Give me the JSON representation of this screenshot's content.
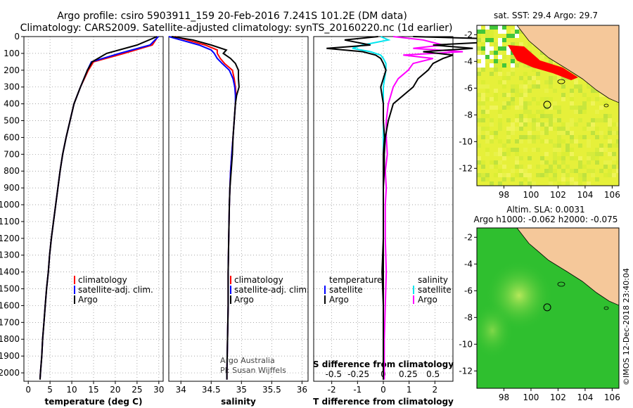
{
  "header": {
    "line1": "Argo profile: csiro 5903911_159 20-Feb-2016 7.241S 101.2E (DM data)",
    "line2": "Climatology: CARS2009. Satellite-adjusted climatology: synTS_20160220.nc (1d earlier)"
  },
  "colors": {
    "climatology": "#ff0000",
    "satellite": "#0000ff",
    "argo": "#000000",
    "sat_temp_diff": "#00e5ee",
    "sat_sal_diff": "#ff00ff",
    "land": "#f5c89a",
    "hot": "#ff0000",
    "sst_bg": "#e6f03a",
    "sla_bg": "#2fbf2f"
  },
  "credits": {
    "line1": "Argo Australia",
    "line2": "PI: Susan Wijffels",
    "stamp": "©IMOS 12-Dec-2018 23:40:04"
  },
  "chart_data": [
    {
      "id": "temperature",
      "type": "line",
      "xlabel": "temperature (deg C)",
      "xlim": [
        -1,
        31
      ],
      "xticks": [
        0,
        5,
        10,
        15,
        20,
        25,
        30
      ],
      "xtick_labels": [
        "0",
        "5",
        "10",
        "15",
        "20",
        "25",
        "30"
      ],
      "ylim": [
        2050,
        0
      ],
      "yticks": [
        0,
        100,
        200,
        300,
        400,
        500,
        600,
        700,
        800,
        900,
        1000,
        1100,
        1200,
        1300,
        1400,
        1500,
        1600,
        1700,
        1800,
        1900,
        2000
      ],
      "ytick_labels": [
        "0",
        "100",
        "200",
        "300",
        "400",
        "500",
        "600",
        "700",
        "800",
        "900",
        "1000",
        "1100",
        "1200",
        "1300",
        "1400",
        "1500",
        "1600",
        "1700",
        "1800",
        "1900",
        "2000"
      ],
      "grid": "dotted",
      "legend": [
        "climatology",
        "satellite-adj. clim.",
        "Argo"
      ],
      "depth": [
        0,
        50,
        100,
        150,
        200,
        300,
        400,
        500,
        600,
        700,
        800,
        900,
        1000,
        1100,
        1200,
        1300,
        1400,
        1500,
        1600,
        1700,
        1800,
        1900,
        2000,
        2040
      ],
      "series": [
        {
          "name": "climatology",
          "color": "#ff0000",
          "values": [
            29.8,
            28.5,
            22,
            15,
            13.8,
            12,
            10.5,
            9.6,
            8.7,
            7.9,
            7.3,
            6.8,
            6.3,
            5.8,
            5.3,
            4.9,
            4.6,
            4.2,
            3.9,
            3.6,
            3.3,
            3.1,
            2.8,
            2.7
          ]
        },
        {
          "name": "satellite-adj. clim.",
          "color": "#0000ff",
          "values": [
            29.9,
            28,
            21,
            14.5,
            13.6,
            12,
            10.5,
            9.6,
            8.7,
            7.9,
            7.3,
            6.8,
            6.3,
            5.8,
            5.3,
            4.9,
            4.6,
            4.2,
            3.9,
            3.6,
            3.3,
            3.1,
            2.8,
            2.7
          ]
        },
        {
          "name": "Argo",
          "color": "#000000",
          "values": [
            29.6,
            25,
            18,
            14.7,
            13.6,
            12,
            10.5,
            9.6,
            8.7,
            7.9,
            7.3,
            6.8,
            6.3,
            5.8,
            5.3,
            4.9,
            4.6,
            4.2,
            3.9,
            3.6,
            3.3,
            3.1,
            2.8,
            2.7
          ]
        }
      ]
    },
    {
      "id": "salinity",
      "type": "line",
      "xlabel": "salinity",
      "xlim": [
        33.8,
        36.1
      ],
      "xticks": [
        34,
        34.5,
        35,
        35.5,
        36
      ],
      "xtick_labels": [
        "34",
        "34.5",
        "35",
        "35.5",
        "36"
      ],
      "ylim": [
        2050,
        0
      ],
      "grid": "dotted",
      "legend": [
        "climatology",
        "satellite-adj. clim.",
        "Argo"
      ],
      "depth": [
        0,
        20,
        50,
        80,
        100,
        130,
        160,
        200,
        250,
        300,
        350,
        400,
        500,
        600,
        700,
        800,
        900,
        1000,
        1200,
        1400,
        1600,
        1800,
        2000,
        2040
      ],
      "series": [
        {
          "name": "climatology",
          "color": "#ff0000",
          "values": [
            33.9,
            34.1,
            34.4,
            34.6,
            34.6,
            34.65,
            34.72,
            34.85,
            34.88,
            34.9,
            34.91,
            34.9,
            34.88,
            34.86,
            34.84,
            34.82,
            34.81,
            34.8,
            34.79,
            34.78,
            34.78,
            34.77,
            34.76,
            34.76
          ]
        },
        {
          "name": "satellite-adj. clim.",
          "color": "#0000ff",
          "values": [
            33.8,
            34,
            34.3,
            34.5,
            34.55,
            34.6,
            34.68,
            34.8,
            34.86,
            34.89,
            34.9,
            34.9,
            34.88,
            34.86,
            34.84,
            34.82,
            34.81,
            34.8,
            34.79,
            34.78,
            34.78,
            34.77,
            34.76,
            34.76
          ]
        },
        {
          "name": "Argo",
          "color": "#000000",
          "values": [
            33.85,
            34.2,
            34.5,
            34.75,
            34.7,
            34.82,
            34.9,
            34.95,
            34.95,
            34.96,
            34.92,
            34.9,
            34.88,
            34.86,
            34.85,
            34.83,
            34.81,
            34.8,
            34.79,
            34.78,
            34.78,
            34.77,
            34.76,
            34.76
          ]
        }
      ]
    },
    {
      "id": "differences",
      "type": "line",
      "xlabel": "T difference from climatology",
      "xlim": [
        -2.7,
        2.7
      ],
      "xticks": [
        -2,
        -1,
        0,
        1,
        2
      ],
      "xtick_labels": [
        "-2",
        "-1",
        "0",
        "1",
        "2"
      ],
      "secondary_xlabel": "S difference from climatology",
      "secondary_xticks": [
        -0.5,
        -0.25,
        0,
        0.25,
        0.5
      ],
      "secondary_xtick_labels": [
        "-0.5",
        "-0.25",
        "0",
        "0.25",
        "0.5"
      ],
      "ylim": [
        2050,
        0
      ],
      "grid": "dotted",
      "legend_left_title": "temperature",
      "legend_right_title": "salinity",
      "legend_left": [
        "satellite",
        "Argo"
      ],
      "legend_right": [
        "satellite",
        "Argo"
      ],
      "depth": [
        0,
        20,
        50,
        70,
        90,
        110,
        130,
        160,
        200,
        250,
        300,
        400,
        500,
        600,
        700,
        800,
        900,
        1000,
        1200,
        1400,
        1600,
        1800,
        2000,
        2040
      ],
      "series": [
        {
          "name": "T diff satellite",
          "color": "#00e5ee",
          "values": [
            -0.1,
            0.2,
            -0.8,
            -1.2,
            -0.5,
            -0.1,
            0.0,
            0.1,
            0.1,
            0.05,
            0.0,
            0.0,
            0.0,
            0.0,
            0.0,
            0.0,
            0.0,
            0.0,
            0.0,
            0.0,
            0.0,
            0.0,
            0.0,
            0.0
          ]
        },
        {
          "name": "T diff Argo",
          "color": "#000000",
          "values": [
            -0.2,
            -1.5,
            -0.5,
            -2.2,
            -0.8,
            -0.3,
            -0.1,
            0.0,
            0.1,
            0.0,
            -0.1,
            0.0,
            0.0,
            0.05,
            0.0,
            0.0,
            0.0,
            0.0,
            0.0,
            -0.05,
            0.0,
            0.0,
            0.0,
            0.0
          ]
        },
        {
          "name": "S diff satellite",
          "color": "#ff00ff",
          "values": [
            0.1,
            0.4,
            0.6,
            0.3,
            0.8,
            0.2,
            0.5,
            0.3,
            0.25,
            0.15,
            0.1,
            0.05,
            0.03,
            0.03,
            0.04,
            0.02,
            0.03,
            0.02,
            0.02,
            0.03,
            0.02,
            0.01,
            0.01,
            0.01
          ]
        },
        {
          "name": "S diff Argo",
          "color": "#000000",
          "values": [
            0.3,
            1.5,
            0.5,
            0.9,
            0.4,
            0.7,
            0.6,
            0.5,
            0.45,
            0.35,
            0.3,
            0.1,
            0.05,
            0.02,
            0.01,
            0.01,
            0.0,
            0.0,
            0.0,
            0.0,
            0.0,
            0.0,
            0.0,
            0.0
          ]
        }
      ]
    },
    {
      "id": "sst_map",
      "type": "heatmap",
      "title": "sat. SST: 29.4 Argo: 29.7",
      "xlim": [
        96,
        106.5
      ],
      "ylim": [
        -13.3,
        -1.3
      ],
      "xticks": [
        98,
        100,
        102,
        104,
        106
      ],
      "xtick_labels": [
        "98",
        "100",
        "102",
        "104",
        "106"
      ],
      "yticks": [
        -2,
        -4,
        -6,
        -8,
        -10,
        -12
      ],
      "ytick_labels": [
        "-2",
        "-4",
        "-6",
        "-8",
        "-10",
        "-12"
      ],
      "profile_location": [
        101.2,
        -7.241
      ]
    },
    {
      "id": "sla_map",
      "type": "heatmap",
      "title_line1": "Altim. SLA: 0.0031",
      "title_line2": "Argo h1000: -0.062 h2000: -0.075",
      "xlim": [
        96,
        106.5
      ],
      "ylim": [
        -13.3,
        -1.3
      ],
      "xticks": [
        98,
        100,
        102,
        104,
        106
      ],
      "xtick_labels": [
        "98",
        "100",
        "102",
        "104",
        "106"
      ],
      "yticks": [
        -2,
        -4,
        -6,
        -8,
        -10,
        -12
      ],
      "ytick_labels": [
        "-2",
        "-4",
        "-6",
        "-8",
        "-10",
        "-12"
      ],
      "profile_location": [
        101.2,
        -7.241
      ]
    }
  ]
}
